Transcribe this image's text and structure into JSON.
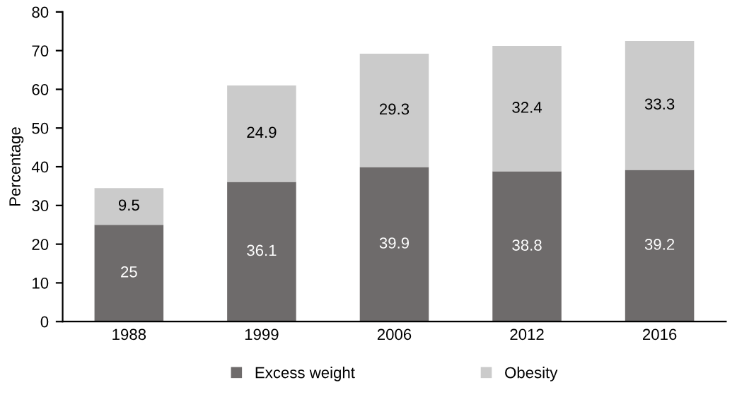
{
  "chart_data": {
    "type": "bar",
    "stacked": true,
    "ylabel": "Percentage",
    "categories": [
      "1988",
      "1999",
      "2006",
      "2012",
      "2016"
    ],
    "series": [
      {
        "name": "Excess weight",
        "color": "#6e6b6b",
        "values": [
          25,
          36.1,
          39.9,
          38.8,
          39.2
        ]
      },
      {
        "name": "Obesity",
        "color": "#cbcbcb",
        "values": [
          9.5,
          24.9,
          29.3,
          32.4,
          33.3
        ]
      }
    ],
    "ylim": [
      0,
      80
    ],
    "yticks": [
      0,
      10,
      20,
      30,
      40,
      50,
      60,
      70,
      80
    ],
    "data_labels": true,
    "grid": false,
    "legend": "bottom"
  }
}
